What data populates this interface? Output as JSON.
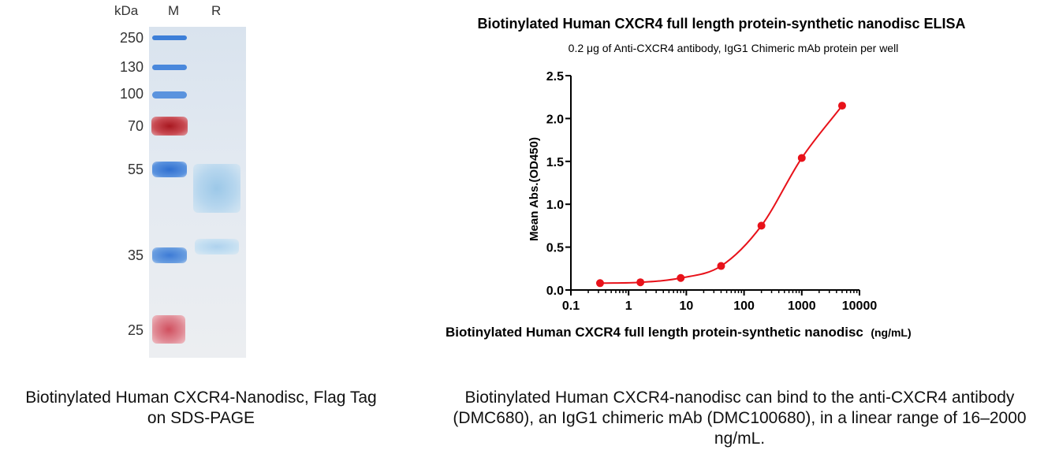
{
  "gel": {
    "unit_label": "kDa",
    "lane_marker": "M",
    "lane_sample": "R",
    "markers": [
      "250",
      "130",
      "100",
      "70",
      "55",
      "35",
      "25"
    ],
    "caption": "Biotinylated Human CXCR4-Nanodisc, Flag Tag on SDS-PAGE"
  },
  "chart_caption": "Biotinylated Human CXCR4-nanodisc can bind to the anti-CXCR4 antibody (DMC680), an IgG1 chimeric mAb (DMC100680), in a linear range of 16–2000 ng/mL.",
  "chart_data": {
    "type": "line",
    "title": "Biotinylated Human CXCR4 full length protein-synthetic nanodisc ELISA",
    "subtitle": "0.2 μg of Anti-CXCR4 antibody, IgG1 Chimeric mAb protein per well",
    "xlabel": "Biotinylated Human CXCR4 full length protein-synthetic nanodisc",
    "xlabel_unit": "(ng/mL)",
    "ylabel": "Mean Abs.(OD450)",
    "xscale": "log",
    "xlim": [
      0.1,
      10000
    ],
    "ylim": [
      0,
      2.5
    ],
    "xticks": [
      "0.1",
      "1",
      "10",
      "100",
      "1000",
      "10000"
    ],
    "yticks": [
      "0.0",
      "0.5",
      "1.0",
      "1.5",
      "2.0",
      "2.5"
    ],
    "color": "#e8121a",
    "series": [
      {
        "x": [
          0.32,
          1.6,
          8,
          40,
          200,
          1000,
          5000
        ],
        "values": [
          0.08,
          0.09,
          0.14,
          0.28,
          0.75,
          1.54,
          2.15
        ]
      }
    ]
  }
}
